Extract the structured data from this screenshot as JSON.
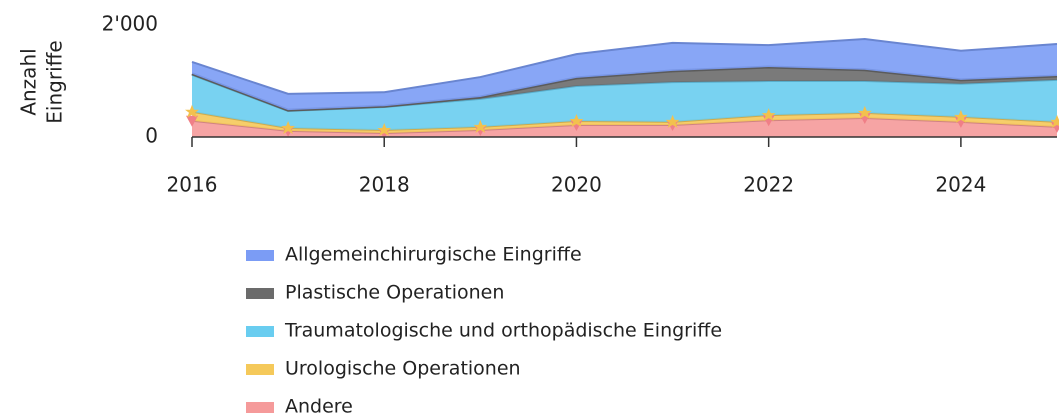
{
  "chart_data": {
    "type": "stacked_area",
    "ylabel": [
      "Anzahl",
      "Eingriffe"
    ],
    "x": [
      2016,
      2017,
      2018,
      2019,
      2020,
      2021,
      2022,
      2023,
      2024,
      2025
    ],
    "xlim": [
      2016,
      2025
    ],
    "xticks": [
      2016,
      2018,
      2020,
      2022,
      2024
    ],
    "ylim": [
      0,
      2000
    ],
    "yticks": [
      0,
      {
        "value": 2000,
        "label": "2'000"
      }
    ],
    "series": [
      {
        "name": "Allgemeinchirurgische Eingriffe",
        "color": "#7b9cf5",
        "values": [
          210,
          290,
          250,
          355,
          425,
          500,
          390,
          550,
          520,
          570
        ]
      },
      {
        "name": "Plastische Operationen",
        "color": "#6b6b6b",
        "values": [
          20,
          15,
          15,
          35,
          145,
          200,
          250,
          200,
          70,
          70
        ]
      },
      {
        "name": "Traumatologische und orthopädische Eingriffe",
        "color": "#69cdf0",
        "values": [
          660,
          305,
          410,
          500,
          625,
          710,
          610,
          570,
          590,
          750
        ]
      },
      {
        "name": "Urologische Operationen",
        "color": "#f5c95a",
        "marker": "star",
        "values": [
          160,
          50,
          55,
          55,
          70,
          55,
          90,
          90,
          90,
          90
        ]
      },
      {
        "name": "Andere",
        "color": "#f59a9a",
        "marker": "triangle-down",
        "values": [
          290,
          110,
          70,
          125,
          215,
          215,
          300,
          340,
          270,
          180
        ]
      }
    ]
  }
}
